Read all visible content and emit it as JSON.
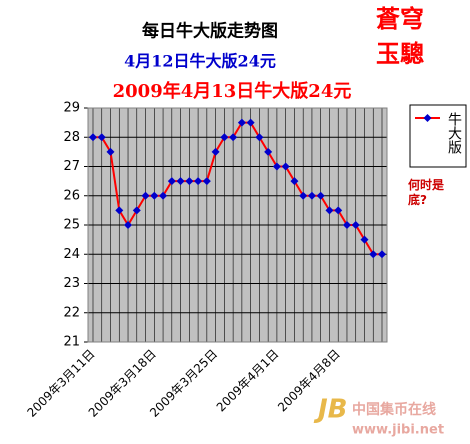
{
  "chart_data": {
    "type": "line",
    "title": "每日牛大版走势图",
    "subtitles": [
      "4月12日牛大版24元",
      "2009年4月13日牛大版24元"
    ],
    "logo": [
      "蒼穹",
      "玉驄"
    ],
    "annotation": "何时是底?",
    "watermark": [
      "中国集币在线",
      "www.jibi.net"
    ],
    "categories": [
      "2009年3月11日",
      null,
      null,
      null,
      null,
      null,
      null,
      "2009年3月18日",
      null,
      null,
      null,
      null,
      null,
      null,
      "2009年3月25日",
      null,
      null,
      null,
      null,
      null,
      null,
      "2009年4月1日",
      null,
      null,
      null,
      null,
      null,
      null,
      "2009年4月8日",
      null,
      null,
      null,
      null,
      null
    ],
    "series": [
      {
        "name": "牛大版",
        "color": "#ff0000",
        "marker_color": "#0000cc",
        "values": [
          28,
          28,
          27.5,
          25.5,
          25,
          25.5,
          26,
          26,
          26,
          26.5,
          26.5,
          26.5,
          26.5,
          26.5,
          27.5,
          28,
          28,
          28.5,
          28.5,
          28,
          27.5,
          27,
          27,
          26.5,
          26,
          26,
          26,
          25.5,
          25.5,
          25,
          25,
          24.5,
          24,
          24
        ]
      }
    ],
    "ylim": [
      21,
      29
    ],
    "yticks": [
      21,
      22,
      23,
      24,
      25,
      26,
      27,
      28,
      29
    ],
    "grid": true,
    "plot_color": "#c0c0c0",
    "legend": "right"
  }
}
